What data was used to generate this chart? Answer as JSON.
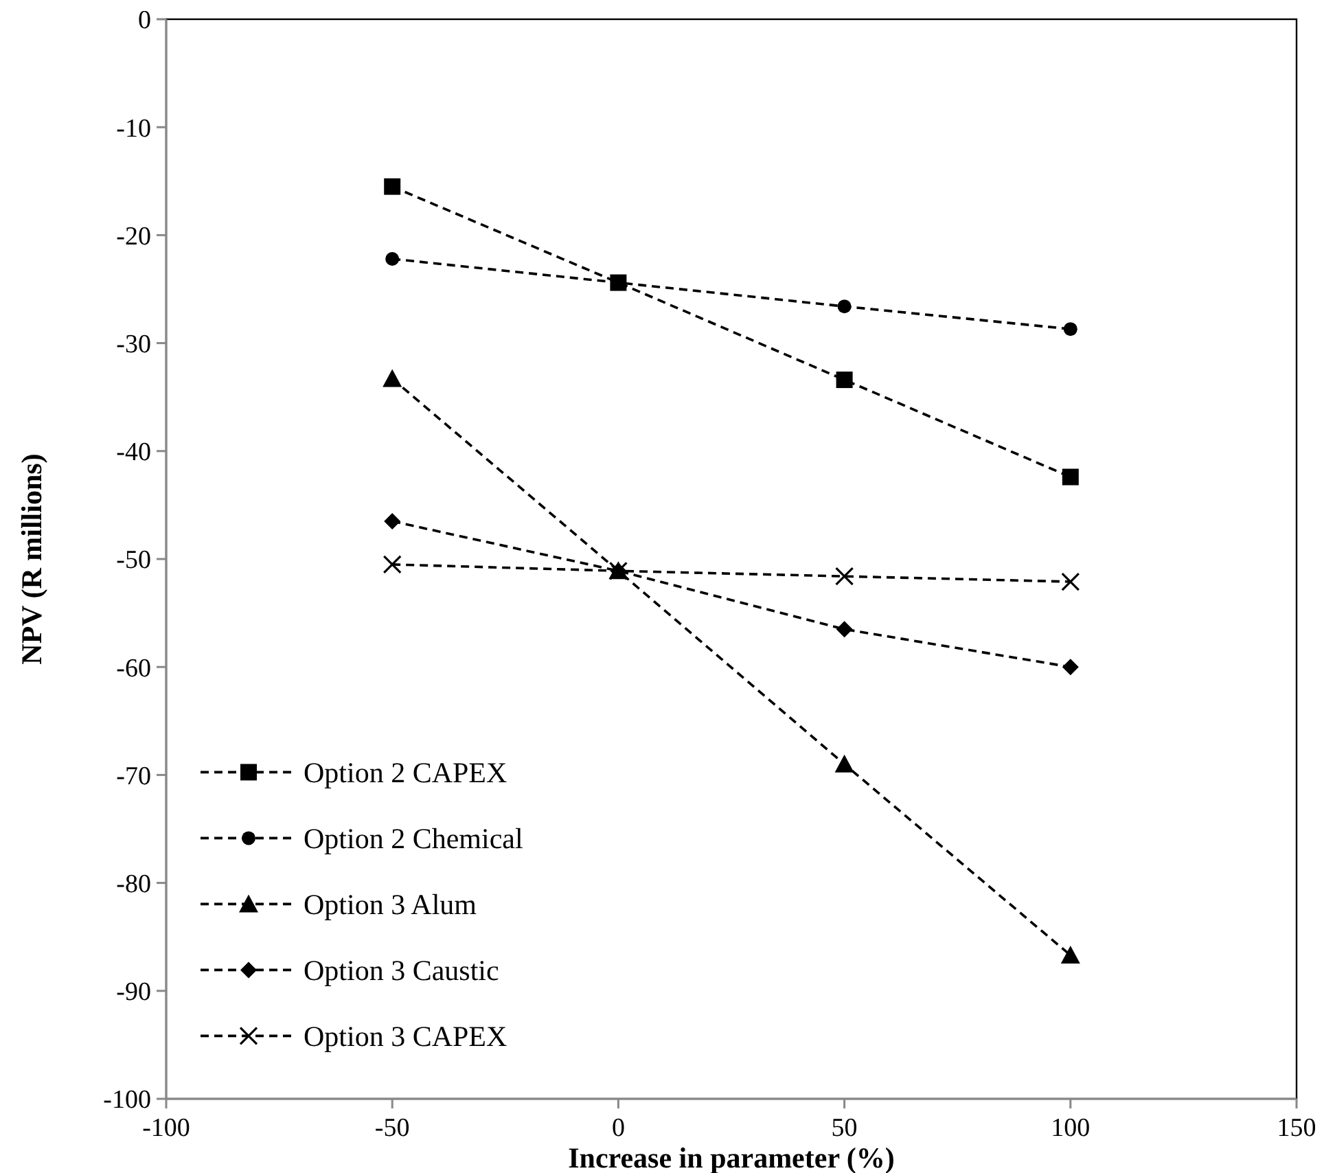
{
  "chart_data": {
    "type": "line",
    "xlabel": "Increase in parameter (%)",
    "ylabel": "NPV (R millions)",
    "x": [
      -50,
      0,
      50,
      100
    ],
    "xlim": [
      -100,
      150
    ],
    "xticks": [
      -100,
      -50,
      0,
      50,
      100,
      150
    ],
    "ylim": [
      -100,
      0
    ],
    "yticks": [
      -100,
      -90,
      -80,
      -70,
      -60,
      -50,
      -40,
      -30,
      -20,
      -10,
      0
    ],
    "grid": false,
    "legend": "bottom left",
    "line_style": "dashed",
    "series": [
      {
        "name": "Option 2 CAPEX",
        "color": "#000000",
        "marker": "square",
        "values": [
          -15.5,
          -24.4,
          -33.4,
          -42.4
        ]
      },
      {
        "name": "Option 2 Chemical",
        "color": "#000000",
        "marker": "circle",
        "values": [
          -22.2,
          -24.4,
          -26.6,
          -28.7
        ]
      },
      {
        "name": "Option 3 Alum",
        "color": "#000000",
        "marker": "triangle",
        "values": [
          -33.3,
          -51.1,
          -69.0,
          -86.7
        ]
      },
      {
        "name": "Option 3 Caustic",
        "color": "#000000",
        "marker": "diamond",
        "values": [
          -46.5,
          -51.1,
          -56.5,
          -60.0
        ]
      },
      {
        "name": "Option 3 CAPEX",
        "color": "#000000",
        "marker": "cross",
        "values": [
          -50.5,
          -51.1,
          -51.6,
          -52.1
        ]
      }
    ]
  }
}
